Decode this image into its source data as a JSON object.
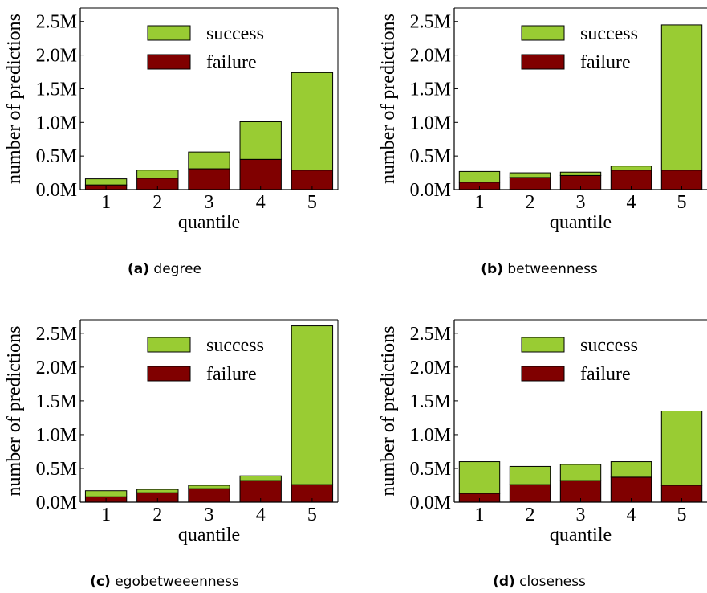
{
  "chart_data": [
    {
      "type": "bar",
      "stacked": true,
      "caption": {
        "label": "(a)",
        "text": "degree"
      },
      "xlabel": "quantile",
      "ylabel": "number of predictions",
      "categories": [
        "1",
        "2",
        "3",
        "4",
        "5"
      ],
      "yticks": [
        "0.0M",
        "0.5M",
        "1.0M",
        "1.5M",
        "2.0M",
        "2.5M"
      ],
      "ylim": [
        0,
        2.7
      ],
      "legend_position": "top-center",
      "series": [
        {
          "name": "failure",
          "color": "#800000",
          "values": [
            0.07,
            0.17,
            0.31,
            0.45,
            0.29
          ]
        },
        {
          "name": "success",
          "color": "#99cc33",
          "values": [
            0.09,
            0.12,
            0.25,
            0.56,
            1.45
          ]
        }
      ]
    },
    {
      "type": "bar",
      "stacked": true,
      "caption": {
        "label": "(b)",
        "text": "betweenness"
      },
      "xlabel": "quantile",
      "ylabel": "number of predictions",
      "categories": [
        "1",
        "2",
        "3",
        "4",
        "5"
      ],
      "yticks": [
        "0.0M",
        "0.5M",
        "1.0M",
        "1.5M",
        "2.0M",
        "2.5M"
      ],
      "ylim": [
        0,
        2.7
      ],
      "legend_position": "top-center",
      "series": [
        {
          "name": "failure",
          "color": "#800000",
          "values": [
            0.11,
            0.18,
            0.21,
            0.29,
            0.29
          ]
        },
        {
          "name": "success",
          "color": "#99cc33",
          "values": [
            0.16,
            0.07,
            0.05,
            0.06,
            2.16
          ]
        }
      ]
    },
    {
      "type": "bar",
      "stacked": true,
      "caption": {
        "label": "(c)",
        "text": "egobetweeenness"
      },
      "xlabel": "quantile",
      "ylabel": "number of predictions",
      "categories": [
        "1",
        "2",
        "3",
        "4",
        "5"
      ],
      "yticks": [
        "0.0M",
        "0.5M",
        "1.0M",
        "1.5M",
        "2.0M",
        "2.5M"
      ],
      "ylim": [
        0,
        2.7
      ],
      "legend_position": "top-center",
      "series": [
        {
          "name": "failure",
          "color": "#800000",
          "values": [
            0.08,
            0.14,
            0.2,
            0.32,
            0.26
          ]
        },
        {
          "name": "success",
          "color": "#99cc33",
          "values": [
            0.09,
            0.05,
            0.05,
            0.07,
            2.35
          ]
        }
      ]
    },
    {
      "type": "bar",
      "stacked": true,
      "caption": {
        "label": "(d)",
        "text": "closeness"
      },
      "xlabel": "quantile",
      "ylabel": "number of predictions",
      "categories": [
        "1",
        "2",
        "3",
        "4",
        "5"
      ],
      "yticks": [
        "0.0M",
        "0.5M",
        "1.0M",
        "1.5M",
        "2.0M",
        "2.5M"
      ],
      "ylim": [
        0,
        2.7
      ],
      "legend_position": "top-center",
      "series": [
        {
          "name": "failure",
          "color": "#800000",
          "values": [
            0.13,
            0.26,
            0.32,
            0.37,
            0.25
          ]
        },
        {
          "name": "success",
          "color": "#99cc33",
          "values": [
            0.47,
            0.27,
            0.24,
            0.23,
            1.1
          ]
        }
      ]
    }
  ]
}
